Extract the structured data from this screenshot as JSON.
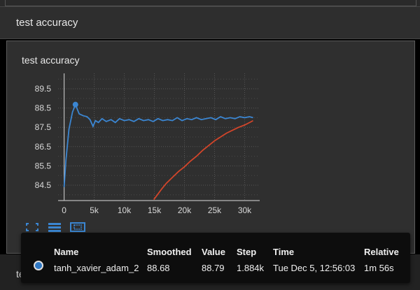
{
  "section": {
    "title": "test accuracy"
  },
  "card": {
    "title": "test accuracy"
  },
  "bottom_section": {
    "title": "test_loss"
  },
  "toolbar": {
    "icons": [
      "fit-domain-icon",
      "toggle-log-scale-icon",
      "fit-to-data-icon"
    ]
  },
  "tooltip": {
    "headers": {
      "name": "Name",
      "smoothed": "Smoothed",
      "value": "Value",
      "step": "Step",
      "time": "Time",
      "relative": "Relative"
    },
    "row": {
      "name": "tanh_xavier_adam_2",
      "smoothed": "88.68",
      "value": "88.79",
      "step": "1.884k",
      "time": "Tue Dec 5, 12:56:03",
      "relative": "1m 56s",
      "color": "#2f78c4"
    }
  },
  "colors": {
    "blue_series": "#3b86d2",
    "orange_series": "#d2452a",
    "panel": "#2f2f2f"
  },
  "chart_data": {
    "type": "line",
    "title": "test accuracy",
    "xlabel": "",
    "ylabel": "",
    "xlim": [
      -1000,
      32500
    ],
    "ylim": [
      83.7,
      90.3
    ],
    "x_ticks": [
      0,
      5000,
      10000,
      15000,
      20000,
      25000,
      30000
    ],
    "x_tick_labels": [
      "0",
      "5k",
      "10k",
      "15k",
      "20k",
      "25k",
      "30k"
    ],
    "y_ticks": [
      84.5,
      85.5,
      86.5,
      87.5,
      88.5,
      89.5
    ],
    "y_tick_labels": [
      "84.5",
      "85.5",
      "86.5",
      "87.5",
      "88.5",
      "89.5"
    ],
    "grid": true,
    "highlight_point": {
      "series": "tanh_xavier_adam_2",
      "x": 1884,
      "y": 88.68
    },
    "series": [
      {
        "name": "tanh_xavier_adam_2",
        "color": "#3b86d2",
        "x": [
          0,
          300,
          800,
          1400,
          1884,
          2500,
          3200,
          3800,
          4300,
          4800,
          5200,
          5700,
          6300,
          7000,
          7800,
          8500,
          9200,
          10000,
          10800,
          11600,
          12400,
          13200,
          14000,
          14800,
          15600,
          16400,
          17200,
          18000,
          18800,
          19600,
          20400,
          21200,
          22000,
          22800,
          23600,
          24400,
          25200,
          26000,
          26800,
          27600,
          28400,
          29200,
          30000,
          30800,
          31400
        ],
        "y": [
          84.4,
          85.8,
          87.4,
          88.3,
          88.68,
          88.2,
          88.1,
          88.05,
          87.9,
          87.55,
          87.85,
          87.75,
          87.95,
          87.8,
          87.9,
          87.75,
          87.95,
          87.85,
          87.9,
          87.8,
          87.95,
          87.85,
          87.9,
          87.8,
          87.95,
          87.85,
          87.9,
          87.85,
          88.0,
          87.85,
          87.95,
          87.9,
          88.0,
          87.9,
          87.95,
          88.0,
          87.9,
          88.05,
          87.95,
          88.0,
          87.95,
          88.05,
          88.0,
          88.05,
          88.0
        ]
      },
      {
        "name": "",
        "color": "#d2452a",
        "x": [
          14900,
          15500,
          16200,
          17000,
          18000,
          19000,
          20000,
          21000,
          22000,
          23000,
          24000,
          25000,
          26000,
          27000,
          28000,
          29000,
          30000,
          31000,
          31400
        ],
        "y": [
          83.75,
          84.0,
          84.3,
          84.6,
          84.9,
          85.2,
          85.45,
          85.75,
          86.0,
          86.3,
          86.55,
          86.8,
          87.0,
          87.2,
          87.35,
          87.5,
          87.62,
          87.78,
          87.85
        ]
      }
    ]
  }
}
